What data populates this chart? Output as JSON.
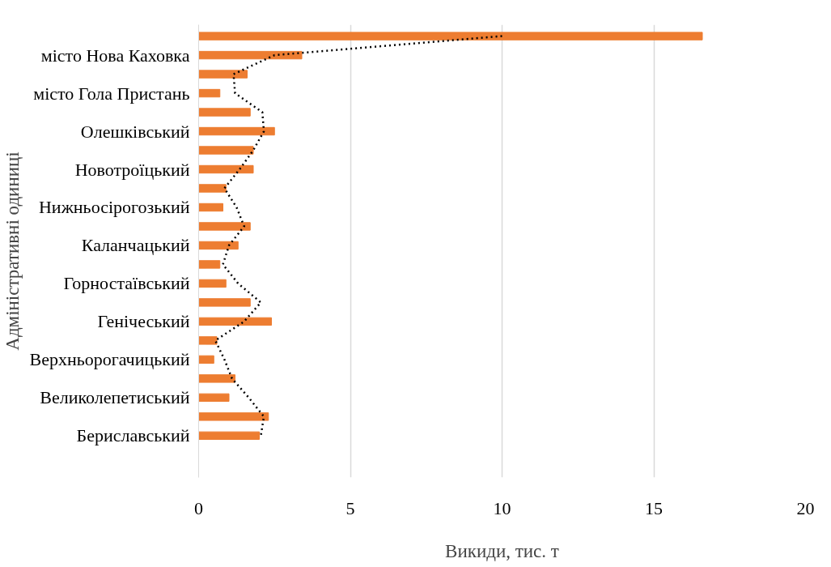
{
  "chart_data": {
    "type": "bar",
    "orientation": "horizontal",
    "xlabel": "Викиди, тис. т",
    "ylabel": "Адміністративні одиниці",
    "categories": [
      null,
      "місто Нова Каховка",
      null,
      "місто Гола Пристань",
      null,
      "Олешківський",
      null,
      "Новотроїцький",
      null,
      "Нижньосірогозький",
      null,
      "Каланчацький",
      null,
      "Горностаївський",
      null,
      "Генічеський",
      null,
      "Верхньорогачицький",
      null,
      "Великолепетиський",
      null,
      "Бериславський"
    ],
    "series": [
      {
        "color": "#ed7d31",
        "values": [
          16.6,
          3.4,
          1.6,
          0.7,
          1.7,
          2.5,
          1.8,
          1.8,
          0.9,
          0.8,
          1.7,
          1.3,
          0.7,
          0.9,
          1.7,
          2.4,
          0.6,
          0.5,
          1.2,
          1.0,
          2.3,
          2.0
        ]
      },
      {
        "type": "line",
        "color": "#000000",
        "line_style": "dotted",
        "values": [
          10.0,
          2.5,
          1.15,
          1.2,
          2.1,
          2.15,
          1.8,
          1.35,
          0.85,
          1.25,
          1.5,
          1.0,
          0.8,
          1.3,
          2.05,
          1.5,
          0.55,
          0.85,
          1.1,
          1.65,
          2.15,
          2.05
        ]
      }
    ],
    "xlim": [
      0,
      20
    ],
    "xticks": [
      0,
      5,
      10,
      15,
      20
    ],
    "grid": "x"
  }
}
